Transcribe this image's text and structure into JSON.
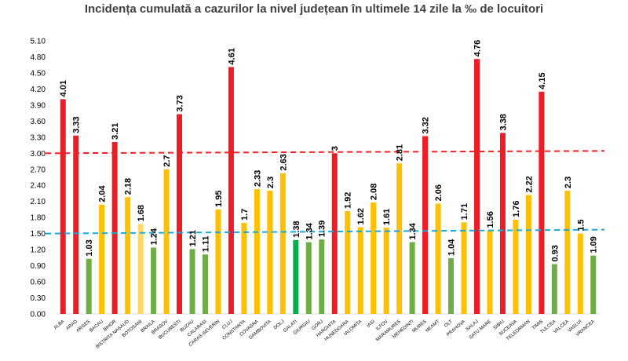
{
  "chart_data": {
    "type": "bar",
    "title": "Incidența cumulată a cazurilor la nivel județean în ultimele 14 zile la ‰ de locuitori",
    "xlabel": "",
    "ylabel": "",
    "ylim": [
      0,
      5.1
    ],
    "yticks": [
      "0.00",
      "0.30",
      "0.60",
      "0.90",
      "1.20",
      "1.50",
      "1.80",
      "2.10",
      "2.40",
      "2.70",
      "3.00",
      "3.30",
      "3.60",
      "3.90",
      "4.20",
      "4.50",
      "4.80",
      "5.10"
    ],
    "reference_lines": [
      {
        "value": 3.0,
        "color": "#e8262a",
        "style": "dashed"
      },
      {
        "value": 1.5,
        "color": "#1fa7d4",
        "style": "dashed"
      }
    ],
    "colors": {
      "red": "#ee1c24",
      "yellow": "#ffc000",
      "green": "#70ad47",
      "light_yellow": "#ffd966",
      "dark_green": "#00b050"
    },
    "categories": [
      "ALBA",
      "ARAD",
      "ARGES",
      "BACAU",
      "BIHOR",
      "BISTRITA NASAUD",
      "BOTOSANI",
      "BRAILA",
      "BRASOV",
      "BUCURESTI",
      "BUZAU",
      "CALARASI",
      "CARAS-SEVERIN",
      "CLUJ",
      "CONSTANTA",
      "COVASNA",
      "DAMBOVITA",
      "DOLJ",
      "GALATI",
      "GIURGIU",
      "GORJ",
      "HARGHITA",
      "HUNEDOARA",
      "IALOMITA",
      "IASI",
      "ILFOV",
      "MARAMURES",
      "MEHEDINTI",
      "MURES",
      "NEAMT",
      "OLT",
      "PRAHOVA",
      "SALAJ",
      "SATU MARE",
      "SIBIU",
      "SUCEAVA",
      "TELEORMAN",
      "TIMIS",
      "TULCEA",
      "VALCEA",
      "VASLUI",
      "VRANCEA"
    ],
    "values": [
      4.01,
      3.33,
      1.03,
      2.04,
      3.21,
      2.18,
      1.68,
      1.24,
      2.7,
      3.73,
      1.21,
      1.11,
      1.95,
      4.61,
      1.7,
      2.33,
      2.3,
      2.63,
      1.38,
      1.34,
      1.39,
      3,
      1.92,
      1.62,
      2.08,
      1.61,
      2.81,
      1.34,
      3.32,
      2.06,
      1.04,
      1.71,
      4.76,
      1.56,
      3.38,
      1.76,
      2.22,
      4.15,
      0.93,
      2.3,
      1.5,
      1.09
    ],
    "value_labels": [
      "4.01",
      "3.33",
      "1.03",
      "2.04",
      "3.21",
      "2.18",
      "1.68",
      "1.24",
      "2.7",
      "3.73",
      "1.21",
      "1.11",
      "1.95",
      "4.61",
      "1.7",
      "2.33",
      "2.3",
      "2.63",
      "1.38",
      "1.34",
      "1.39",
      "3",
      "1.92",
      "1.62",
      "2.08",
      "1.61",
      "2.81",
      "1.34",
      "3.32",
      "2.06",
      "1.04",
      "1.71",
      "4.76",
      "1.56",
      "3.38",
      "1.76",
      "2.22",
      "4.15",
      "0.93",
      "2.3",
      "1.5",
      "1.09"
    ],
    "bar_colors": [
      "red",
      "red",
      "green",
      "yellow",
      "red",
      "yellow",
      "light_yellow",
      "green",
      "yellow",
      "red",
      "green",
      "green",
      "yellow",
      "red",
      "yellow",
      "yellow",
      "yellow",
      "yellow",
      "dark_green",
      "green",
      "green",
      "red",
      "yellow",
      "yellow",
      "yellow",
      "yellow",
      "yellow",
      "green",
      "red",
      "yellow",
      "green",
      "yellow",
      "red",
      "yellow",
      "red",
      "yellow",
      "yellow",
      "red",
      "green",
      "yellow",
      "yellow",
      "green"
    ],
    "grid": false,
    "legend": "none"
  }
}
